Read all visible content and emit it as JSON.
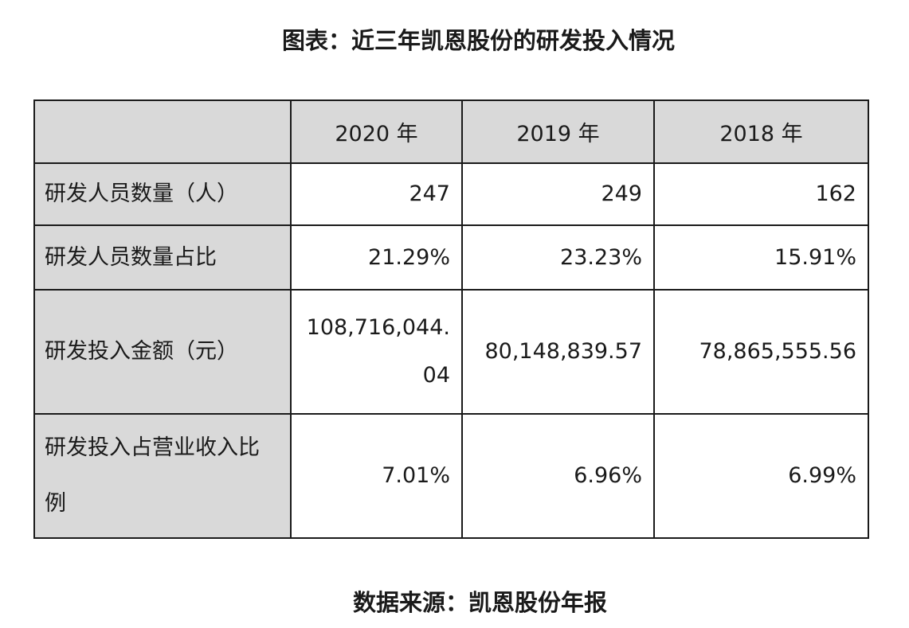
{
  "title": "图表：近三年凯恩股份的研发投入情况",
  "table": {
    "headers": [
      "",
      "2020 年",
      "2019 年",
      "2018 年"
    ],
    "rows": [
      {
        "label": "研发人员数量（人）",
        "values": [
          "247",
          "249",
          "162"
        ]
      },
      {
        "label": "研发人员数量占比",
        "values": [
          "21.29%",
          "23.23%",
          "15.91%"
        ]
      },
      {
        "label": "研发投入金额（元）",
        "values": [
          "108,716,044.04",
          "80,148,839.57",
          "78,865,555.56"
        ]
      },
      {
        "label": "研发投入占营业收入比例",
        "values": [
          "7.01%",
          "6.96%",
          "6.99%"
        ]
      }
    ]
  },
  "source": "数据来源：凯恩股份年报"
}
